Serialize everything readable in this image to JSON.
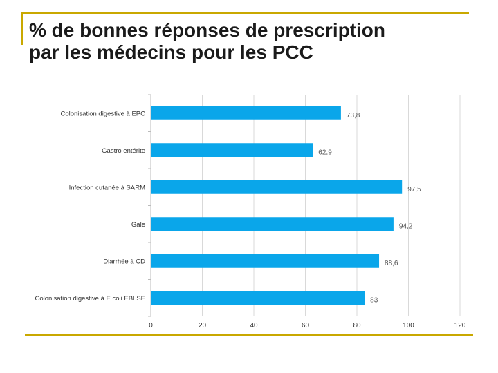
{
  "slide": {
    "title_line1": "% de bonnes réponses de prescription",
    "title_line2": "par les médecins pour les PCC"
  },
  "colors": {
    "bar": "#0aa6ea",
    "accent_rule": "#c9a800",
    "grid": "#d9d9d9",
    "text": "#333333"
  },
  "chart_data": {
    "type": "bar",
    "orientation": "horizontal",
    "categories": [
      "Colonisation digestive à EPC",
      "Gastro entérite",
      "Infection cutanée à SARM",
      "Gale",
      "Diarrhée à CD",
      "Colonisation digestive à E.coli EBLSE"
    ],
    "values": [
      73.8,
      62.9,
      97.5,
      94.2,
      88.6,
      83
    ],
    "value_labels": [
      "73,8",
      "62,9",
      "97,5",
      "94,2",
      "88,6",
      "83"
    ],
    "xticks": [
      "0",
      "20",
      "40",
      "60",
      "80",
      "100",
      "120"
    ],
    "xlim": [
      0,
      120
    ],
    "grid": true
  }
}
